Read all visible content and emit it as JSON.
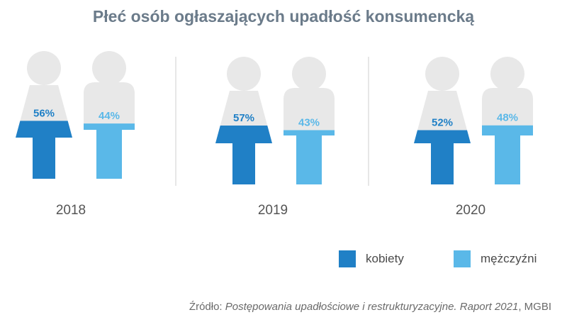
{
  "chart_data": {
    "type": "pictogram",
    "title": "Płeć osób ogłaszających upadłość konsumencką",
    "categories": [
      "2018",
      "2019",
      "2020"
    ],
    "series": [
      {
        "name": "kobiety",
        "values": [
          56,
          57,
          52
        ],
        "labels": [
          "56%",
          "57%",
          "52%"
        ]
      },
      {
        "name": "mężczyźni",
        "values": [
          44,
          43,
          48
        ],
        "labels": [
          "44%",
          "43%",
          "48%"
        ]
      }
    ],
    "ylim": [
      0,
      100
    ],
    "unit": "%"
  },
  "legend": {
    "women": "kobiety",
    "men": "mężczyźni"
  },
  "source": {
    "prefix": "Źródło: ",
    "title": "Postępowania upadłościowe i restrukturyzacyjne. Raport 2021",
    "suffix": ", MGBI"
  },
  "colors": {
    "women": "#2080c6",
    "men": "#5ab8e8",
    "empty": "#e8e8e8",
    "title": "#6b7b8a",
    "divider": "#cfcfcf"
  }
}
